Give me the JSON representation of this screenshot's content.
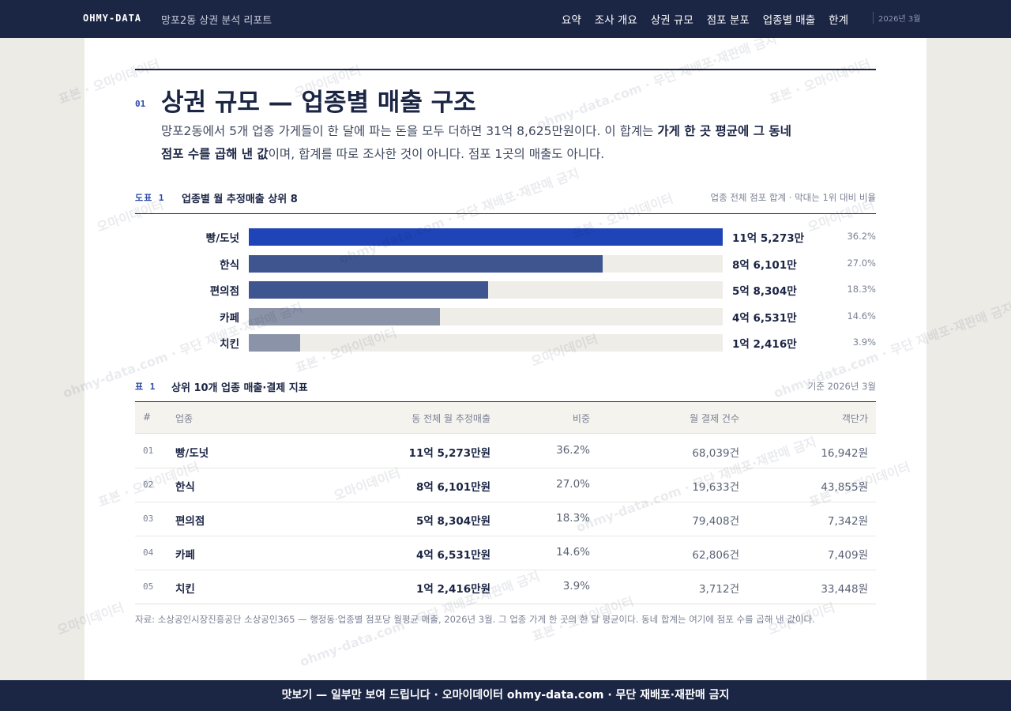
{
  "header": {
    "brand": "OHMY-DATA",
    "subtitle": "망포2동 상권 분석 리포트",
    "nav": [
      "요약",
      "조사 개요",
      "상권 규모",
      "점포 분포",
      "업종별 매출",
      "한계"
    ],
    "date": "2026년 3월"
  },
  "section": {
    "number": "01",
    "title": "상권 규모 — 업종별 매출 구조",
    "lead": {
      "before": "망포2동에서 5개 업종 가게들이 한 달에 파는 돈을 모두 더하면 31억 8,625만원이다. 이 합계는 ",
      "strong": "가게 한 곳 평균에 그 동네 점포 수를 곱해 낸 값",
      "after": "이며, 합계를 따로 조사한 것이 아니다. 점포 1곳의 매출도 아니다."
    }
  },
  "chart_data": {
    "type": "bar",
    "orientation": "horizontal",
    "label": "도표 1",
    "title": "업종별 월 추정매출 상위 8",
    "note": "업종 전체 점포 합계 · 막대는 1위 대비 비율",
    "categories": [
      "빵/도넛",
      "한식",
      "편의점",
      "카페",
      "치킨"
    ],
    "values": [
      115273,
      86101,
      58304,
      46531,
      12416
    ],
    "value_labels": [
      "11억 5,273만",
      "8억 6,101만",
      "5억 8,304만",
      "4억 6,531만",
      "1억 2,416만"
    ],
    "colors": [
      "#1e44b8",
      "#3f5590",
      "#3f5590",
      "#8b93a8",
      "#8b93a8"
    ],
    "shares": {
      "values": [
        36.2,
        27.0,
        18.3,
        14.6,
        3.9
      ],
      "value_labels": [
        "36.2%",
        "27.0%",
        "18.3%",
        "14.6%",
        "3.9%"
      ]
    }
  },
  "table": {
    "label": "표 1",
    "title": "상위 10개 업종 매출·결제 지표",
    "note": "기준 2026년 3월",
    "columns": [
      "#",
      "업종",
      "동 전체 월 추정매출",
      "비중",
      "월 결제 건수",
      "객단가"
    ],
    "rows": [
      [
        "01",
        "빵/도넛",
        "11억 5,273만원",
        "36.2%",
        "68,039건",
        "16,942원"
      ],
      [
        "02",
        "한식",
        "8억 6,101만원",
        "27.0%",
        "19,633건",
        "43,855원"
      ],
      [
        "03",
        "편의점",
        "5억 8,304만원",
        "18.3%",
        "79,408건",
        "7,342원"
      ],
      [
        "04",
        "카페",
        "4억 6,531만원",
        "14.6%",
        "62,806건",
        "7,409원"
      ],
      [
        "05",
        "치킨",
        "1억 2,416만원",
        "3.9%",
        "3,712건",
        "33,448원"
      ]
    ]
  },
  "source": "자료: 소상공인시장진흥공단 소상공인365 — 행정동·업종별 점포당 월평균 매출, 2026년 3월. 그 업종 가게 한 곳의 한 달 평균이다. 동네 합계는 여기에 점포 수를 곱해 낸 값이다.",
  "banner": "맛보기 — 일부만 보여 드립니다 · 오마이데이터 ohmy-data.com · 무단 재배포·재판매 금지",
  "watermarks": [
    "표본 · 오마이데이터",
    "오마이데이터",
    "ohmy-data.com · 무단 재배포·재판매 금지"
  ]
}
